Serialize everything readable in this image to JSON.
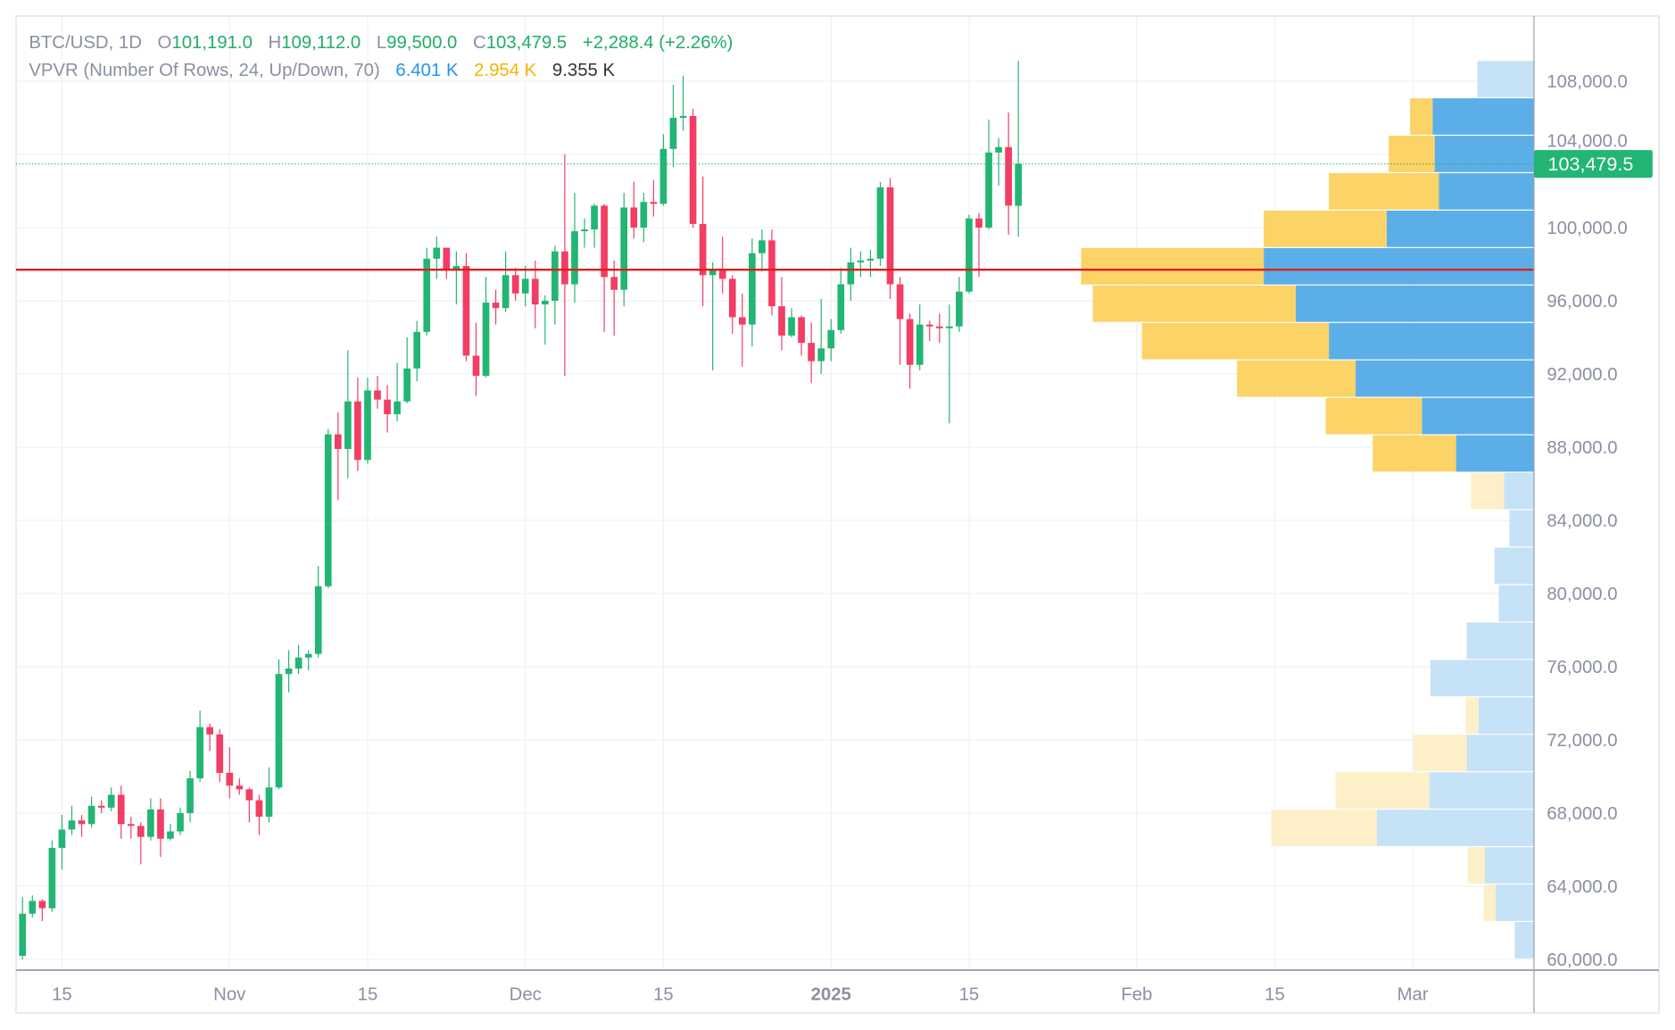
{
  "header": {
    "symbol": "BTC/USD, 1D",
    "open_label": "O",
    "open": "101,191.0",
    "high_label": "H",
    "high": "109,112.0",
    "low_label": "L",
    "low": "99,500.0",
    "close_label": "C",
    "close": "103,479.5",
    "change": "+2,288.4 (+2.26%)",
    "indicator": "VPVR (Number Of Rows, 24, Up/Down, 70)",
    "vol_up": "6.401 K",
    "vol_down": "2.954 K",
    "vol_total": "9.355 K"
  },
  "last_price_label": "103,479.5",
  "colors": {
    "up": "#22b573",
    "down": "#f23d64",
    "profile_up": "#5caee9",
    "profile_down": "#fbd366",
    "profile_up_pale": "#c6e2f7",
    "profile_down_pale": "#fdefc8",
    "level_line": "#e01e1e",
    "text": "#8a8fa3",
    "up_text": "#1fae66",
    "vol_up_text": "#2196f3",
    "vol_down_text": "#f5b400"
  },
  "chart_data": {
    "type": "candlestick",
    "title": "BTC/USD, 1D",
    "ylim": [
      59000,
      110500
    ],
    "y_ticks": [
      "60,000.0",
      "64,000.0",
      "68,000.0",
      "72,000.0",
      "76,000.0",
      "80,000.0",
      "84,000.0",
      "88,000.0",
      "92,000.0",
      "96,000.0",
      "100,000.0",
      "104,000.0",
      "108,000.0"
    ],
    "x_ticks": [
      {
        "label": "15",
        "date": "2024-10-15"
      },
      {
        "label": "Nov",
        "date": "2024-11-01"
      },
      {
        "label": "15",
        "date": "2024-11-15"
      },
      {
        "label": "Dec",
        "date": "2024-12-01"
      },
      {
        "label": "15",
        "date": "2024-12-15"
      },
      {
        "label": "2025",
        "date": "2025-01-01",
        "bold": true
      },
      {
        "label": "15",
        "date": "2025-01-15"
      },
      {
        "label": "Feb",
        "date": "2025-02-01"
      },
      {
        "label": "15",
        "date": "2025-02-15"
      },
      {
        "label": "Mar",
        "date": "2025-03-01"
      }
    ],
    "horizontal_level": 97700,
    "last_price": 103479.5,
    "grid": true,
    "candles": [
      [
        "2024-10-11",
        60200,
        63400,
        60000,
        62500
      ],
      [
        "2024-10-12",
        62500,
        63500,
        62300,
        63200
      ],
      [
        "2024-10-13",
        63200,
        63300,
        62100,
        62800
      ],
      [
        "2024-10-14",
        62800,
        66500,
        62600,
        66100
      ],
      [
        "2024-10-15",
        66100,
        67900,
        64900,
        67100
      ],
      [
        "2024-10-16",
        67100,
        68400,
        66800,
        67600
      ],
      [
        "2024-10-17",
        67600,
        67900,
        66700,
        67400
      ],
      [
        "2024-10-18",
        67400,
        68900,
        67200,
        68400
      ],
      [
        "2024-10-19",
        68400,
        68700,
        68000,
        68300
      ],
      [
        "2024-10-20",
        68300,
        69400,
        68100,
        69000
      ],
      [
        "2024-10-21",
        69000,
        69500,
        66600,
        67400
      ],
      [
        "2024-10-22",
        67400,
        67800,
        66600,
        67300
      ],
      [
        "2024-10-23",
        67300,
        67500,
        65200,
        66700
      ],
      [
        "2024-10-24",
        66700,
        68800,
        66500,
        68200
      ],
      [
        "2024-10-25",
        68200,
        68800,
        65600,
        66600
      ],
      [
        "2024-10-26",
        66600,
        67400,
        66500,
        67000
      ],
      [
        "2024-10-27",
        67000,
        68300,
        66800,
        68000
      ],
      [
        "2024-10-28",
        68000,
        70300,
        67500,
        69900
      ],
      [
        "2024-10-29",
        69900,
        73600,
        69700,
        72700
      ],
      [
        "2024-10-30",
        72700,
        72900,
        71400,
        72300
      ],
      [
        "2024-10-31",
        72300,
        72600,
        69700,
        70200
      ],
      [
        "2024-11-01",
        70200,
        71600,
        68800,
        69500
      ],
      [
        "2024-11-02",
        69500,
        69900,
        69000,
        69300
      ],
      [
        "2024-11-03",
        69300,
        69400,
        67500,
        68700
      ],
      [
        "2024-11-04",
        68700,
        69000,
        66800,
        67800
      ],
      [
        "2024-11-05",
        67800,
        70500,
        67500,
        69400
      ],
      [
        "2024-11-06",
        69400,
        76400,
        69300,
        75600
      ],
      [
        "2024-11-07",
        75600,
        76900,
        74600,
        75900
      ],
      [
        "2024-11-08",
        75900,
        77200,
        75600,
        76500
      ],
      [
        "2024-11-09",
        76500,
        76900,
        75800,
        76700
      ],
      [
        "2024-11-10",
        76700,
        81500,
        76500,
        80400
      ],
      [
        "2024-11-11",
        80400,
        89000,
        80300,
        88700
      ],
      [
        "2024-11-12",
        88700,
        89900,
        85100,
        87900
      ],
      [
        "2024-11-13",
        87900,
        93300,
        86300,
        90500
      ],
      [
        "2024-11-14",
        90500,
        91800,
        86700,
        87300
      ],
      [
        "2024-11-15",
        87300,
        91800,
        87100,
        91100
      ],
      [
        "2024-11-16",
        91100,
        91900,
        90100,
        90600
      ],
      [
        "2024-11-17",
        90600,
        91400,
        88800,
        89800
      ],
      [
        "2024-11-18",
        89800,
        92600,
        89400,
        90500
      ],
      [
        "2024-11-19",
        90500,
        94000,
        90400,
        92300
      ],
      [
        "2024-11-20",
        92300,
        94900,
        91600,
        94300
      ],
      [
        "2024-11-21",
        94300,
        98900,
        94100,
        98300
      ],
      [
        "2024-11-22",
        98300,
        99500,
        97200,
        98900
      ],
      [
        "2024-11-23",
        98900,
        98900,
        97200,
        97700
      ],
      [
        "2024-11-24",
        97700,
        98700,
        95800,
        97900
      ],
      [
        "2024-11-25",
        97900,
        98600,
        92700,
        93000
      ],
      [
        "2024-11-26",
        93000,
        94800,
        90800,
        91900
      ],
      [
        "2024-11-27",
        91900,
        97300,
        91800,
        95900
      ],
      [
        "2024-11-28",
        95900,
        96600,
        94700,
        95600
      ],
      [
        "2024-11-29",
        95600,
        98700,
        95400,
        97400
      ],
      [
        "2024-11-30",
        97400,
        97800,
        96000,
        96400
      ],
      [
        "2024-12-01",
        96400,
        97900,
        95700,
        97200
      ],
      [
        "2024-12-02",
        97200,
        98200,
        94500,
        95800
      ],
      [
        "2024-12-03",
        95800,
        96300,
        93600,
        96000
      ],
      [
        "2024-12-04",
        96000,
        99000,
        94700,
        98700
      ],
      [
        "2024-12-05",
        98700,
        104000,
        91900,
        96900
      ],
      [
        "2024-12-06",
        96900,
        101900,
        95900,
        99800
      ],
      [
        "2024-12-07",
        99800,
        100500,
        98900,
        99900
      ],
      [
        "2024-12-08",
        99900,
        101300,
        98900,
        101200
      ],
      [
        "2024-12-09",
        101200,
        101300,
        94300,
        97300
      ],
      [
        "2024-12-10",
        97300,
        98200,
        94100,
        96600
      ],
      [
        "2024-12-11",
        96600,
        101900,
        95700,
        101100
      ],
      [
        "2024-12-12",
        101100,
        102500,
        99400,
        100000
      ],
      [
        "2024-12-13",
        100000,
        101900,
        99200,
        101400
      ],
      [
        "2024-12-14",
        101400,
        102600,
        100600,
        101300
      ],
      [
        "2024-12-15",
        101300,
        105100,
        101200,
        104300
      ],
      [
        "2024-12-16",
        104300,
        107800,
        103300,
        106000
      ],
      [
        "2024-12-17",
        106000,
        108300,
        105300,
        106100
      ],
      [
        "2024-12-18",
        106100,
        106500,
        100000,
        100200
      ],
      [
        "2024-12-19",
        100200,
        102800,
        95700,
        97400
      ],
      [
        "2024-12-20",
        97400,
        98100,
        92200,
        97700
      ],
      [
        "2024-12-21",
        97700,
        99500,
        96400,
        97200
      ],
      [
        "2024-12-22",
        97200,
        97400,
        94200,
        95100
      ],
      [
        "2024-12-23",
        95100,
        96400,
        92400,
        94700
      ],
      [
        "2024-12-24",
        94700,
        99400,
        93500,
        98600
      ],
      [
        "2024-12-25",
        98600,
        99900,
        97600,
        99300
      ],
      [
        "2024-12-26",
        99300,
        99900,
        95200,
        95700
      ],
      [
        "2024-12-27",
        95700,
        97300,
        93300,
        94100
      ],
      [
        "2024-12-28",
        94100,
        95600,
        94000,
        95100
      ],
      [
        "2024-12-29",
        95100,
        95200,
        93000,
        93700
      ],
      [
        "2024-12-30",
        93700,
        94800,
        91500,
        92700
      ],
      [
        "2024-12-31",
        92700,
        96100,
        92000,
        93400
      ],
      [
        "2025-01-01",
        93400,
        95000,
        92700,
        94400
      ],
      [
        "2025-01-02",
        94400,
        97800,
        94200,
        96900
      ],
      [
        "2025-01-03",
        96900,
        98900,
        96000,
        98100
      ],
      [
        "2025-01-04",
        98100,
        98700,
        97300,
        98200
      ],
      [
        "2025-01-05",
        98200,
        98800,
        97300,
        98300
      ],
      [
        "2025-01-06",
        98300,
        102500,
        97900,
        102200
      ],
      [
        "2025-01-07",
        102200,
        102700,
        96100,
        96900
      ],
      [
        "2025-01-08",
        96900,
        97300,
        92500,
        95000
      ],
      [
        "2025-01-09",
        95000,
        95300,
        91200,
        92500
      ],
      [
        "2025-01-10",
        92500,
        95800,
        92200,
        94700
      ],
      [
        "2025-01-11",
        94700,
        94900,
        93800,
        94600
      ],
      [
        "2025-01-12",
        94600,
        95300,
        93700,
        94500
      ],
      [
        "2025-01-13",
        94500,
        95800,
        89300,
        94600
      ],
      [
        "2025-01-14",
        94600,
        97300,
        94300,
        96500
      ],
      [
        "2025-01-15",
        96500,
        100700,
        96400,
        100500
      ],
      [
        "2025-01-16",
        100500,
        100800,
        97300,
        100000
      ],
      [
        "2025-01-17",
        100000,
        105900,
        99900,
        104100
      ],
      [
        "2025-01-18",
        104100,
        104900,
        102300,
        104400
      ],
      [
        "2025-01-19",
        104400,
        106300,
        99600,
        101200
      ],
      [
        "2025-01-20",
        101191,
        109112,
        99500,
        103479.5
      ]
    ],
    "volume_profile": {
      "rows": 24,
      "price_range": [
        60000,
        109112
      ],
      "value_area_percent": 70,
      "value_area_rows": [
        13,
        22
      ],
      "up": [
        18,
        36,
        46,
        147,
        98,
        63,
        52,
        97,
        63,
        33,
        37,
        23,
        28,
        73,
        105,
        167,
        192,
        223,
        253,
        138,
        89,
        93,
        95,
        53
      ],
      "down": [
        0,
        11,
        16,
        99,
        88,
        50,
        12,
        0,
        0,
        0,
        0,
        0,
        31,
        78,
        90,
        111,
        175,
        190,
        171,
        115,
        103,
        43,
        21,
        0
      ]
    }
  }
}
